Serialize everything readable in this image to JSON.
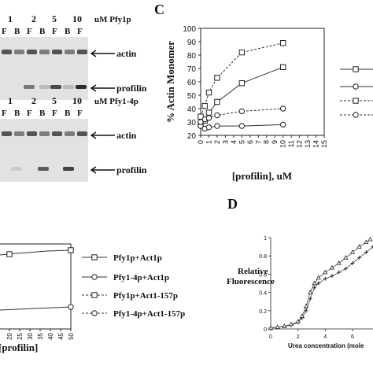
{
  "panel_letters": {
    "c": "C",
    "d": "D"
  },
  "gels": {
    "top": {
      "conc_header": [
        "1",
        "2",
        "5",
        "10"
      ],
      "unit_label": "uM Pfy1p",
      "lane_labels": [
        "F",
        "B",
        "F",
        "B",
        "F",
        "B",
        "F"
      ],
      "band_labels": {
        "actin": "actin",
        "profilin": "profilin"
      }
    },
    "bottom": {
      "conc_header": [
        "1",
        "2",
        "5",
        "10"
      ],
      "unit_label": "uM Pfy1-4p",
      "lane_labels": [
        "F",
        "B",
        "F",
        "B",
        "F",
        "B",
        "F"
      ],
      "band_labels": {
        "actin": "actin",
        "profilin": "profilin"
      }
    }
  },
  "chart_data": [
    {
      "panel": "C",
      "type": "line",
      "title": "",
      "xlabel": "[profilin], uM",
      "ylabel": "% Actin Monomer",
      "xlim": [
        0,
        15
      ],
      "ylim": [
        20,
        100
      ],
      "xticks": [
        0,
        1,
        2,
        3,
        4,
        5,
        6,
        7,
        8,
        9,
        10,
        11,
        12,
        13,
        14,
        15
      ],
      "yticks": [
        20,
        30,
        40,
        50,
        60,
        70,
        80,
        90,
        100
      ],
      "grid": false,
      "legend_position": "right (cut off)",
      "series": [
        {
          "marker": "square",
          "line": "solid",
          "x": [
            0,
            0.5,
            1,
            2,
            5,
            10
          ],
          "y": [
            28,
            31,
            37,
            45,
            59,
            71
          ]
        },
        {
          "marker": "circle",
          "line": "solid",
          "x": [
            0,
            0.5,
            1,
            2,
            5,
            10
          ],
          "y": [
            27,
            25,
            26,
            27,
            27,
            28
          ]
        },
        {
          "marker": "square",
          "line": "dashed",
          "x": [
            0,
            0.5,
            1,
            2,
            5,
            10
          ],
          "y": [
            34,
            42,
            52,
            63,
            82,
            89
          ]
        },
        {
          "marker": "circle",
          "line": "dashed",
          "x": [
            0,
            0.5,
            1,
            2,
            5,
            10
          ],
          "y": [
            30,
            32,
            33,
            35,
            38,
            40
          ]
        }
      ]
    },
    {
      "panel": "lower-left (cropped)",
      "type": "line",
      "xlabel": "[profilin]",
      "xtick_labels": [
        "20",
        "25",
        "30",
        "35",
        "40",
        "45",
        "50"
      ],
      "legend": [
        "Pfy1p+Act1p",
        "Pfy1-4p+Act1p",
        "Pfy1p+Act1-157p",
        "Pfy1-4p+Act1-157p"
      ],
      "series": [
        {
          "name": "Pfy1p+Act1p",
          "marker": "square",
          "line": "solid"
        },
        {
          "name": "Pfy1-4p+Act1p",
          "marker": "circle",
          "line": "solid"
        },
        {
          "name": "Pfy1p+Act1-157p",
          "marker": "square",
          "line": "dashed"
        },
        {
          "name": "Pfy1-4p+Act1-157p",
          "marker": "circle",
          "line": "dashed"
        }
      ]
    },
    {
      "panel": "D",
      "type": "line",
      "xlabel": "Urea concentration (mole",
      "ylabel": "Relative Fluorescence",
      "ylabel_lines": [
        "Relative",
        "Fluorescence"
      ],
      "xtick_labels": [
        "0",
        "2",
        "4",
        "6"
      ],
      "ytick_labels": [
        "0",
        "0.2",
        "0.4",
        "0.6",
        "0.8",
        "1"
      ],
      "xlim": [
        0,
        7.5
      ],
      "ylim": [
        0,
        1
      ],
      "series": [
        {
          "marker": "plus",
          "x": [
            0,
            0.5,
            1,
            1.5,
            2,
            2.3,
            2.6,
            2.9,
            3.2,
            3.5,
            4,
            4.5,
            5,
            5.5,
            6,
            6.5,
            7,
            7.5
          ],
          "y": [
            0.01,
            0.02,
            0.03,
            0.04,
            0.07,
            0.12,
            0.2,
            0.33,
            0.45,
            0.5,
            0.55,
            0.58,
            0.62,
            0.66,
            0.72,
            0.78,
            0.84,
            0.9
          ]
        },
        {
          "marker": "triangle",
          "x": [
            0,
            0.5,
            1,
            1.5,
            2,
            2.3,
            2.6,
            2.9,
            3.2,
            3.5,
            4,
            4.5,
            5,
            5.5,
            6,
            6.5,
            7,
            7.3
          ],
          "y": [
            0.01,
            0.02,
            0.03,
            0.05,
            0.08,
            0.14,
            0.25,
            0.4,
            0.5,
            0.56,
            0.62,
            0.67,
            0.72,
            0.78,
            0.84,
            0.9,
            0.95,
            0.98
          ]
        }
      ]
    }
  ]
}
